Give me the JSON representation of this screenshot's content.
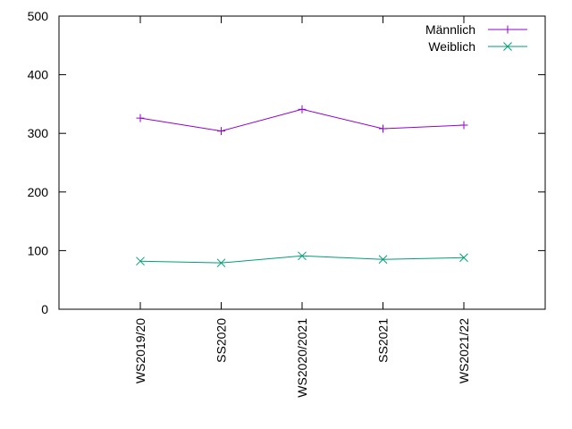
{
  "chart_data": {
    "type": "line",
    "title": "",
    "xlabel": "",
    "ylabel": "",
    "categories": [
      "WS2019/20",
      "SS2020",
      "WS2020/2021",
      "SS2021",
      "WS2021/22"
    ],
    "ylim": [
      0,
      500
    ],
    "yticks": [
      0,
      100,
      200,
      300,
      400,
      500
    ],
    "grid": false,
    "legend_position": "top-right",
    "series": [
      {
        "name": "Männlich",
        "values": [
          326,
          304,
          341,
          308,
          314
        ],
        "color": "#9400d3",
        "marker": "plus"
      },
      {
        "name": "Weiblich",
        "values": [
          82,
          79,
          91,
          85,
          88
        ],
        "color": "#009e73",
        "marker": "cross"
      }
    ]
  }
}
